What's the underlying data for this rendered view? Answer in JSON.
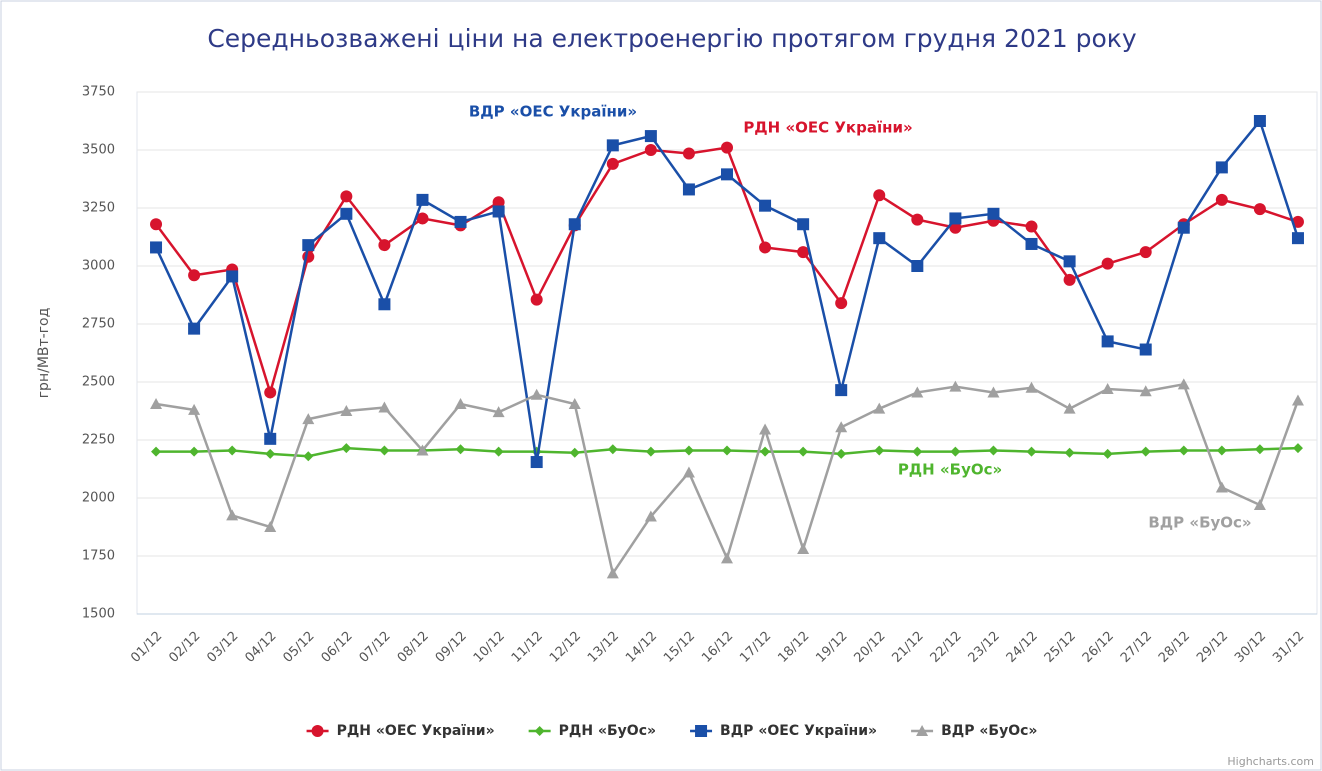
{
  "chart_data": {
    "type": "line",
    "title": "Середньозважені ціни на електроенергію протягом грудня 2021 року",
    "y_label": "грн/МВт-год",
    "credit": "Highcharts.com",
    "categories": [
      "01/12",
      "02/12",
      "03/12",
      "04/12",
      "05/12",
      "06/12",
      "07/12",
      "08/12",
      "09/12",
      "10/12",
      "11/12",
      "12/12",
      "13/12",
      "14/12",
      "15/12",
      "16/12",
      "17/12",
      "18/12",
      "19/12",
      "20/12",
      "21/12",
      "22/12",
      "23/12",
      "24/12",
      "25/12",
      "26/12",
      "27/12",
      "28/12",
      "29/12",
      "30/12",
      "31/12"
    ],
    "ylim": [
      1500,
      3750
    ],
    "yticks": [
      1500,
      1750,
      2000,
      2250,
      2500,
      2750,
      3000,
      3250,
      3500,
      3750
    ],
    "grid": true,
    "legend": "bottom",
    "series": [
      {
        "name": "РДН «ОЕС України»",
        "color": "#d7142d",
        "marker": "circle",
        "values": [
          3180,
          2960,
          2985,
          2455,
          3040,
          3300,
          3090,
          3205,
          3175,
          3275,
          2855,
          3175,
          3440,
          3500,
          3485,
          3510,
          3080,
          3060,
          2840,
          3305,
          3200,
          3165,
          3195,
          3170,
          2940,
          3010,
          3060,
          3180,
          3285,
          3245,
          3190
        ]
      },
      {
        "name": "РДН «БуОс»",
        "color": "#4fb52e",
        "marker": "diamond",
        "values": [
          2200,
          2200,
          2205,
          2190,
          2180,
          2215,
          2205,
          2205,
          2210,
          2200,
          2200,
          2195,
          2210,
          2200,
          2205,
          2205,
          2200,
          2200,
          2190,
          2205,
          2200,
          2200,
          2205,
          2200,
          2195,
          2190,
          2200,
          2205,
          2205,
          2210,
          2215
        ]
      },
      {
        "name": "ВДР «ОЕС України»",
        "color": "#1a4fa8",
        "marker": "square",
        "values": [
          3080,
          2730,
          2955,
          2255,
          3090,
          3225,
          2835,
          3285,
          3190,
          3235,
          2155,
          3180,
          3520,
          3560,
          3330,
          3395,
          3260,
          3180,
          2465,
          3120,
          3000,
          3205,
          3225,
          3095,
          3020,
          2675,
          2640,
          3165,
          3425,
          3625,
          3120
        ]
      },
      {
        "name": "ВДР «БуОс»",
        "color": "#a0a0a0",
        "marker": "triangle",
        "values": [
          2405,
          2380,
          1925,
          1875,
          2340,
          2375,
          2390,
          2205,
          2405,
          2370,
          2445,
          2405,
          1675,
          1920,
          2110,
          1740,
          2295,
          1780,
          2305,
          2385,
          2455,
          2480,
          2455,
          2475,
          2385,
          2470,
          2460,
          2490,
          2045,
          1970,
          2420
        ]
      }
    ],
    "annotations": [
      {
        "text": "ВДР «ОЕС України»",
        "color": "#1a4fa8"
      },
      {
        "text": "РДН «ОЕС України»",
        "color": "#d7142d"
      },
      {
        "text": "РДН «БуОс»",
        "color": "#4fb52e"
      },
      {
        "text": "ВДР «БуОс»",
        "color": "#a0a0a0"
      }
    ]
  }
}
